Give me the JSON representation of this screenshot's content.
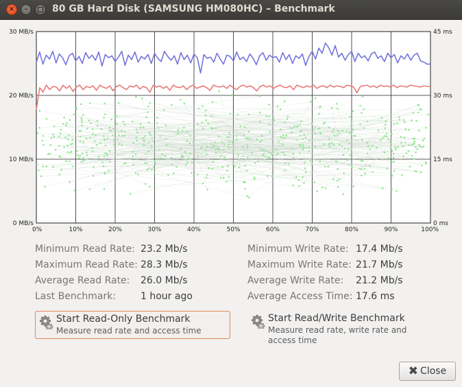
{
  "window": {
    "title": "80 GB Hard Disk (SAMSUNG HM080HC) – Benchmark",
    "controls": {
      "close": "×",
      "minimize": "–",
      "maximize": ""
    }
  },
  "chart_data": {
    "type": "line",
    "left_axis": {
      "ticks": [
        "30 MB/s",
        "20 MB/s",
        "10 MB/s",
        "0 MB/s"
      ],
      "range": [
        0,
        30
      ]
    },
    "right_axis": {
      "ticks": [
        "45 ms",
        "30 ms",
        "15 ms",
        "0 ms"
      ],
      "range": [
        0,
        45
      ]
    },
    "x_axis": {
      "ticks": [
        "0%",
        "10%",
        "20%",
        "30%",
        "40%",
        "50%",
        "60%",
        "70%",
        "80%",
        "90%",
        "100%"
      ],
      "range": [
        0,
        100
      ]
    },
    "grid": true,
    "colors": {
      "read": "#7474dd",
      "write": "#e87878",
      "access": "#8ee88e"
    },
    "series": [
      {
        "kind": "read",
        "values": [
          25.2,
          26.8,
          24.9,
          26.3,
          25.7,
          26.9,
          25.1,
          26.5,
          25.9,
          24.8,
          26.2,
          26.6,
          25.4,
          26.1,
          25.0,
          26.7,
          25.8,
          26.3,
          25.5,
          26.8,
          24.6,
          26.4,
          25.9,
          26.2,
          25.3,
          26.0,
          26.9,
          24.7,
          26.3,
          25.6,
          26.8,
          25.2,
          26.1,
          25.7,
          26.4,
          25.0,
          26.6,
          25.8,
          25.3,
          26.9,
          26.1,
          25.5,
          26.2,
          24.9,
          26.7,
          25.6,
          26.3,
          25.1,
          26.5,
          25.9,
          23.5,
          26.4,
          25.8,
          26.0,
          25.2,
          26.6,
          25.7,
          24.9,
          26.3,
          26.1,
          25.4,
          26.8,
          25.6,
          26.0,
          25.3,
          26.5,
          25.8,
          24.8,
          26.2,
          26.7,
          25.5,
          26.3,
          25.9,
          26.1,
          25.2,
          26.7,
          25.6,
          26.4,
          25.0,
          26.2,
          25.8,
          26.5,
          24.7,
          26.1,
          26.9,
          25.7,
          27.4,
          26.6,
          28.2,
          27.5,
          26.3,
          27.8,
          26.0,
          26.6,
          25.5,
          26.4,
          26.9,
          25.3,
          26.6,
          25.9,
          26.2,
          25.4,
          26.5,
          26.8,
          25.8,
          26.2,
          25.3,
          26.6,
          25.9,
          26.4,
          25.1,
          26.2,
          25.7,
          26.5,
          25.5,
          26.3,
          26.6,
          25.4,
          25.2,
          24.9,
          24.9
        ]
      },
      {
        "kind": "write",
        "values": [
          17.8,
          21.2,
          20.5,
          21.6,
          20.9,
          21.4,
          21.3,
          20.7,
          21.6,
          21.1,
          21.5,
          20.6,
          21.3,
          21.6,
          20.9,
          21.4,
          21.2,
          21.5,
          20.8,
          21.6,
          21.3,
          21.1,
          21.5,
          20.7,
          21.4,
          21.6,
          21.2,
          20.9,
          21.5,
          21.3,
          21.6,
          21.0,
          21.4,
          21.2,
          20.5,
          21.6,
          21.3,
          21.5,
          21.1,
          21.4,
          20.8,
          21.6,
          21.3,
          21.2,
          21.5,
          20.9,
          21.4,
          21.6,
          21.1,
          21.3,
          21.5,
          21.2,
          20.8,
          21.6,
          21.4,
          21.3,
          21.5,
          21.1,
          21.6,
          21.2,
          20.9,
          21.4,
          21.6,
          21.3,
          21.5,
          21.2,
          20.7,
          21.4,
          21.6,
          21.3,
          21.5,
          21.1,
          21.4,
          21.6,
          21.3,
          21.2,
          21.5,
          20.9,
          21.6,
          21.4,
          21.2,
          21.5,
          21.3,
          21.6,
          21.1,
          21.4,
          21.5,
          21.2,
          21.6,
          21.3,
          21.5,
          21.4,
          21.2,
          21.6,
          21.5,
          21.3,
          20.4,
          21.4,
          21.5,
          21.6,
          21.3,
          21.5,
          21.2,
          21.6,
          21.4,
          21.5,
          21.3,
          21.6,
          21.2,
          21.5,
          21.4,
          21.3,
          21.6,
          21.5,
          21.4,
          21.3,
          21.5,
          21.4,
          21.4
        ]
      }
    ],
    "access_time_ms": {
      "count": 600,
      "mean": 17.6,
      "min": 4.0,
      "max": 33.0
    }
  },
  "stats": {
    "read": [
      {
        "label": "Minimum Read Rate:",
        "value": "23.2 Mb/s"
      },
      {
        "label": "Maximum Read Rate:",
        "value": "28.3 Mb/s"
      },
      {
        "label": "Average Read Rate:",
        "value": "26.0 Mb/s"
      },
      {
        "label": "Last Benchmark:",
        "value": "1 hour ago"
      }
    ],
    "write": [
      {
        "label": "Minimum Write Rate:",
        "value": "17.4 Mb/s"
      },
      {
        "label": "Maximum Write Rate:",
        "value": "21.7 Mb/s"
      },
      {
        "label": "Average Write Rate:",
        "value": "21.2 Mb/s"
      },
      {
        "label": "Average Access Time:",
        "value": "17.6 ms"
      }
    ]
  },
  "actions": {
    "read_only": {
      "title": "Start Read-Only Benchmark",
      "subtitle": "Measure read rate and access time"
    },
    "read_write": {
      "title": "Start Read/Write Benchmark",
      "subtitle": "Measure read rate, write rate and access time"
    },
    "close": {
      "label": "Close",
      "icon": "close-icon"
    }
  }
}
